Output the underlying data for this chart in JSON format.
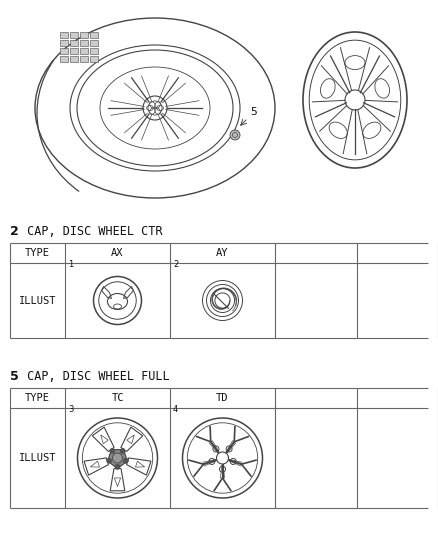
{
  "bg_color": "#ffffff",
  "section2_label": "2",
  "section2_title": " CAP, DISC WHEEL CTR",
  "section5_label": "5",
  "section5_title": " CAP, DISC WHEEL FULL",
  "table2_headers": [
    "TYPE",
    "AX",
    "AY",
    "",
    ""
  ],
  "table5_headers": [
    "TYPE",
    "TC",
    "TD",
    "",
    ""
  ],
  "row_label": "ILLUST",
  "line_color": "#444444",
  "text_color": "#111111",
  "table_border_color": "#666666",
  "fig_w": 4.38,
  "fig_h": 5.33,
  "dpi": 100
}
